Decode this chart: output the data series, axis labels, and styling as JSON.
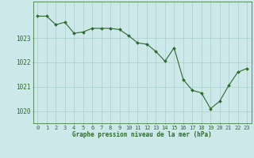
{
  "x": [
    0,
    1,
    2,
    3,
    4,
    5,
    6,
    7,
    8,
    9,
    10,
    11,
    12,
    13,
    14,
    15,
    16,
    17,
    18,
    19,
    20,
    21,
    22,
    23
  ],
  "y": [
    1023.9,
    1023.9,
    1023.55,
    1023.65,
    1023.2,
    1023.25,
    1023.4,
    1023.4,
    1023.4,
    1023.35,
    1023.1,
    1022.8,
    1022.75,
    1022.45,
    1022.05,
    1022.6,
    1021.3,
    1020.85,
    1020.75,
    1020.1,
    1020.4,
    1021.05,
    1021.6,
    1021.75
  ],
  "line_color": "#2d6a2d",
  "marker_color": "#2d6a2d",
  "bg_color": "#cce8e8",
  "grid_color": "#aacece",
  "xlabel": "Graphe pression niveau de la mer (hPa)",
  "xlabel_color": "#2d6a2d",
  "tick_color": "#2d6a2d",
  "ylim": [
    1019.5,
    1024.5
  ],
  "yticks": [
    1020,
    1021,
    1022,
    1023
  ],
  "xlim": [
    -0.5,
    23.5
  ],
  "xticks": [
    0,
    1,
    2,
    3,
    4,
    5,
    6,
    7,
    8,
    9,
    10,
    11,
    12,
    13,
    14,
    15,
    16,
    17,
    18,
    19,
    20,
    21,
    22,
    23
  ],
  "xtick_labels": [
    "0",
    "1",
    "2",
    "3",
    "4",
    "5",
    "6",
    "7",
    "8",
    "9",
    "10",
    "11",
    "12",
    "13",
    "14",
    "15",
    "16",
    "17",
    "18",
    "19",
    "20",
    "21",
    "22",
    "23"
  ]
}
